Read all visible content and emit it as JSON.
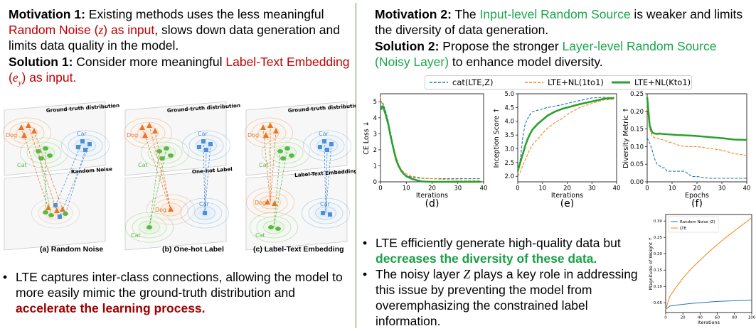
{
  "left": {
    "motivation1_label": "Motivation 1:",
    "motivation1_a": " Existing methods uses the less meaningful",
    "motivation1_red": "Random Noise (",
    "motivation1_red_var": "z",
    "motivation1_red_end": ") as input",
    "motivation1_b": ", slows down data generation and limits data quality in the model.",
    "solution1_label": "Solution 1:",
    "solution1_a": " Consider more meaningful ",
    "solution1_red": "Label-Text Embedding (",
    "solution1_red_var": "e",
    "solution1_red_sub": "y",
    "solution1_red_end": ") as input.",
    "bullet_a": "LTE captures inter-class connections, allowing the model to more easily mimic the ground-truth distribution and ",
    "bullet_b": "accelerate the learning process."
  },
  "illustration": {
    "panels": [
      {
        "top_label": "Ground-truth distribution",
        "mid_label": "Random Noise",
        "caption": "(a) Random Noise"
      },
      {
        "top_label": "Ground-truth distribution",
        "mid_label": "One-hot Label",
        "caption": "(b) One-hot Label"
      },
      {
        "top_label": "Ground-truth distribution",
        "mid_label": "Label-Text Embedding",
        "caption": "(c) Label-Text Embedding"
      }
    ],
    "class_labels": {
      "dog": "Dog",
      "cat": "Cat",
      "car": "Car"
    },
    "colors": {
      "dog": "#e8742a",
      "cat": "#5bb846",
      "car": "#4a90d9"
    }
  },
  "right": {
    "motivation2_label": "Motivation 2:",
    "motivation2_a": " The ",
    "motivation2_green": "Input-level Random Source",
    "motivation2_b": " is weaker and limits the diversity of data generation.",
    "solution2_label": "Solution 2:",
    "solution2_a": " Propose the stronger ",
    "solution2_green": "Layer-level Random Source (Noisy Layer)",
    "solution2_b": " to enhance model diversity.",
    "bullet1_a": "LTE efficiently generate high-quality data but ",
    "bullet1_b": "decreases the diversity of these data.",
    "bullet2_a": "The noisy layer ",
    "bullet2_var": "Z",
    "bullet2_b": " plays a key role in addressing this issue by preventing the model from overemphasizing the constrained label information."
  },
  "legend": {
    "items": [
      "cat(LTE,Z)",
      "LTE+NL(1to1)",
      "LTE+NL(Kto1)"
    ],
    "colors": [
      "#1f77b4",
      "#ff7f0e",
      "#2ca02c"
    ]
  },
  "chart_data": [
    {
      "type": "line",
      "caption": "(d)",
      "xlabel": "Iterations",
      "ylabel": "CE Loss ↓",
      "xlim": [
        0,
        40
      ],
      "ylim": [
        0,
        5.5
      ],
      "xticks": [
        0,
        10,
        20,
        30,
        40
      ],
      "yticks": [
        0,
        1,
        2,
        3,
        4,
        5
      ],
      "series": [
        {
          "name": "cat(LTE,Z)",
          "x": [
            0,
            1,
            2,
            3,
            4,
            5,
            6,
            7,
            8,
            9,
            10,
            12,
            14,
            16,
            20,
            25,
            30,
            35,
            39
          ],
          "y": [
            4.6,
            4.9,
            4.4,
            3.8,
            3.0,
            2.2,
            1.5,
            1.0,
            0.7,
            0.5,
            0.4,
            0.3,
            0.25,
            0.22,
            0.2,
            0.2,
            0.2,
            0.2,
            0.2
          ]
        },
        {
          "name": "LTE+NL(1to1)",
          "x": [
            0,
            1,
            2,
            3,
            4,
            5,
            6,
            7,
            8,
            9,
            10,
            12,
            14,
            16,
            20,
            25,
            30,
            35,
            39
          ],
          "y": [
            5.3,
            4.6,
            4.2,
            3.6,
            2.9,
            2.2,
            1.6,
            1.1,
            0.8,
            0.6,
            0.5,
            0.35,
            0.3,
            0.25,
            0.2,
            0.15,
            0.12,
            0.1,
            0.1
          ]
        },
        {
          "name": "LTE+NL(Kto1)",
          "x": [
            0,
            1,
            2,
            3,
            4,
            5,
            6,
            7,
            8,
            9,
            10,
            12,
            14,
            16,
            20,
            25,
            30,
            35,
            39
          ],
          "y": [
            4.5,
            4.7,
            4.2,
            3.6,
            2.8,
            2.1,
            1.4,
            1.0,
            0.7,
            0.5,
            0.35,
            0.2,
            0.1,
            0.02,
            0.0,
            0.0,
            0.0,
            0.0,
            0.0
          ]
        }
      ]
    },
    {
      "type": "line",
      "caption": "(e)",
      "xlabel": "Iterations",
      "ylabel": "Inception Score ↑",
      "xlim": [
        0,
        40
      ],
      "ylim": [
        1.8,
        5.0
      ],
      "xticks": [
        0,
        10,
        20,
        30,
        40
      ],
      "yticks": [
        2.0,
        2.5,
        3.0,
        3.5,
        4.0,
        4.5,
        5.0
      ],
      "series": [
        {
          "name": "cat(LTE,Z)",
          "x": [
            0,
            1,
            2,
            3,
            4,
            5,
            6,
            8,
            10,
            12,
            15,
            18,
            20,
            25,
            30,
            35,
            39
          ],
          "y": [
            2.1,
            2.6,
            3.4,
            3.9,
            4.1,
            4.25,
            4.35,
            4.4,
            4.45,
            4.5,
            4.55,
            4.6,
            4.65,
            4.75,
            4.85,
            4.87,
            4.85
          ]
        },
        {
          "name": "LTE+NL(1to1)",
          "x": [
            0,
            1,
            2,
            3,
            4,
            5,
            6,
            8,
            10,
            12,
            15,
            18,
            20,
            25,
            30,
            35,
            39
          ],
          "y": [
            2.0,
            2.15,
            2.4,
            2.6,
            2.8,
            3.0,
            3.15,
            3.35,
            3.55,
            3.75,
            3.95,
            4.1,
            4.25,
            4.5,
            4.65,
            4.78,
            4.8
          ]
        },
        {
          "name": "LTE+NL(Kto1)",
          "x": [
            0,
            1,
            2,
            3,
            4,
            5,
            6,
            8,
            10,
            12,
            15,
            18,
            20,
            25,
            30,
            35,
            39
          ],
          "y": [
            2.2,
            2.5,
            2.8,
            3.1,
            3.35,
            3.55,
            3.7,
            3.9,
            4.05,
            4.2,
            4.35,
            4.45,
            4.5,
            4.62,
            4.72,
            4.82,
            4.85
          ]
        }
      ]
    },
    {
      "type": "line",
      "caption": "(f)",
      "xlabel": "Epochs",
      "ylabel": "Diversity Metric ↑",
      "xlim": [
        0,
        40
      ],
      "ylim": [
        0,
        0.25
      ],
      "xticks": [
        0,
        10,
        20,
        30,
        40
      ],
      "yticks": [
        0.0,
        0.05,
        0.1,
        0.15,
        0.2,
        0.25
      ],
      "series": [
        {
          "name": "cat(LTE,Z)",
          "x": [
            0,
            1,
            2,
            3,
            4,
            5,
            6,
            7,
            8,
            10,
            12,
            15,
            17,
            18,
            20,
            25,
            30,
            35,
            40
          ],
          "y": [
            0.125,
            0.11,
            0.09,
            0.065,
            0.05,
            0.045,
            0.04,
            0.04,
            0.03,
            0.03,
            0.03,
            0.03,
            0.02,
            0.015,
            0.015,
            0.01,
            0.01,
            0.01,
            0.01
          ]
        },
        {
          "name": "LTE+NL(1to1)",
          "x": [
            0,
            1,
            2,
            3,
            4,
            5,
            6,
            8,
            10,
            12,
            15,
            18,
            20,
            25,
            30,
            35,
            40
          ],
          "y": [
            0.21,
            0.15,
            0.13,
            0.125,
            0.125,
            0.12,
            0.12,
            0.115,
            0.11,
            0.105,
            0.1,
            0.1,
            0.1,
            0.095,
            0.09,
            0.08,
            0.075
          ]
        },
        {
          "name": "LTE+NL(Kto1)",
          "x": [
            0,
            1,
            2,
            3,
            4,
            5,
            6,
            8,
            10,
            12,
            15,
            18,
            20,
            25,
            30,
            35,
            40
          ],
          "y": [
            0.24,
            0.16,
            0.14,
            0.137,
            0.136,
            0.137,
            0.136,
            0.135,
            0.134,
            0.133,
            0.132,
            0.131,
            0.13,
            0.127,
            0.124,
            0.12,
            0.119
          ]
        }
      ]
    },
    {
      "type": "line",
      "xlabel": "Iterations",
      "ylabel": "Magnitude of Weight ↑",
      "xlim": [
        0,
        100
      ],
      "ylim": [
        0.02,
        0.32
      ],
      "xticks": [
        0,
        20,
        40,
        60,
        80,
        100
      ],
      "yticks": [
        0.05,
        0.1,
        0.15,
        0.2,
        0.25,
        0.3
      ],
      "series": [
        {
          "name": "Random Noise (Z)",
          "x": [
            0,
            5,
            10,
            20,
            30,
            40,
            50,
            60,
            70,
            80,
            90,
            100
          ],
          "y": [
            0.03,
            0.04,
            0.042,
            0.045,
            0.048,
            0.05,
            0.052,
            0.054,
            0.055,
            0.056,
            0.057,
            0.058
          ]
        },
        {
          "name": "LTE",
          "x": [
            0,
            5,
            10,
            20,
            30,
            40,
            50,
            60,
            70,
            80,
            90,
            100
          ],
          "y": [
            0.03,
            0.07,
            0.09,
            0.125,
            0.155,
            0.18,
            0.205,
            0.228,
            0.25,
            0.27,
            0.29,
            0.31
          ]
        }
      ]
    }
  ]
}
